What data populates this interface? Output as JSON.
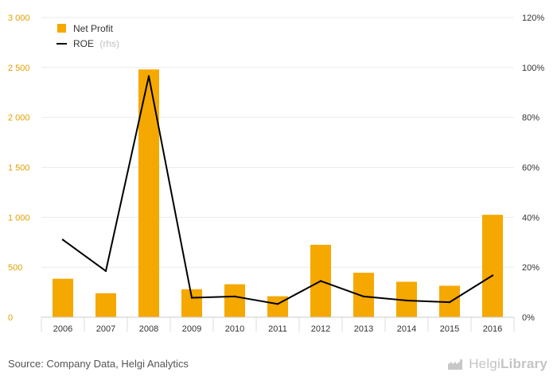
{
  "chart_data": {
    "type": "bar",
    "categories": [
      "2006",
      "2007",
      "2008",
      "2009",
      "2010",
      "2011",
      "2012",
      "2013",
      "2014",
      "2015",
      "2016"
    ],
    "series": [
      {
        "name": "Net Profit",
        "type": "bar",
        "axis": "left",
        "color": "#f5a800",
        "values": [
          385,
          240,
          2480,
          280,
          330,
          210,
          725,
          445,
          355,
          315,
          1025
        ]
      },
      {
        "name": "ROE",
        "legend_suffix": "(rhs)",
        "type": "line",
        "axis": "right",
        "color": "#000000",
        "values": [
          31,
          18.5,
          96.5,
          7.8,
          8.3,
          5.3,
          14.5,
          8.3,
          6.7,
          6.0,
          16.7
        ]
      }
    ],
    "y_left": {
      "ylim": [
        0,
        3000
      ],
      "ticks": [
        0,
        500,
        1000,
        1500,
        2000,
        2500,
        3000
      ],
      "tick_labels": [
        "0",
        "500",
        "1 000",
        "1 500",
        "2 000",
        "2 500",
        "3 000"
      ]
    },
    "y_right": {
      "ylim": [
        0,
        120
      ],
      "ticks": [
        0,
        20,
        40,
        60,
        80,
        100,
        120
      ],
      "tick_labels": [
        "0%",
        "20%",
        "40%",
        "60%",
        "80%",
        "100%",
        "120%"
      ]
    },
    "grid": true,
    "legend_position": "top-left"
  },
  "footer": {
    "source": "Source: Company Data, Helgi Analytics",
    "brand_light": "Helgi",
    "brand_bold": "Library"
  }
}
